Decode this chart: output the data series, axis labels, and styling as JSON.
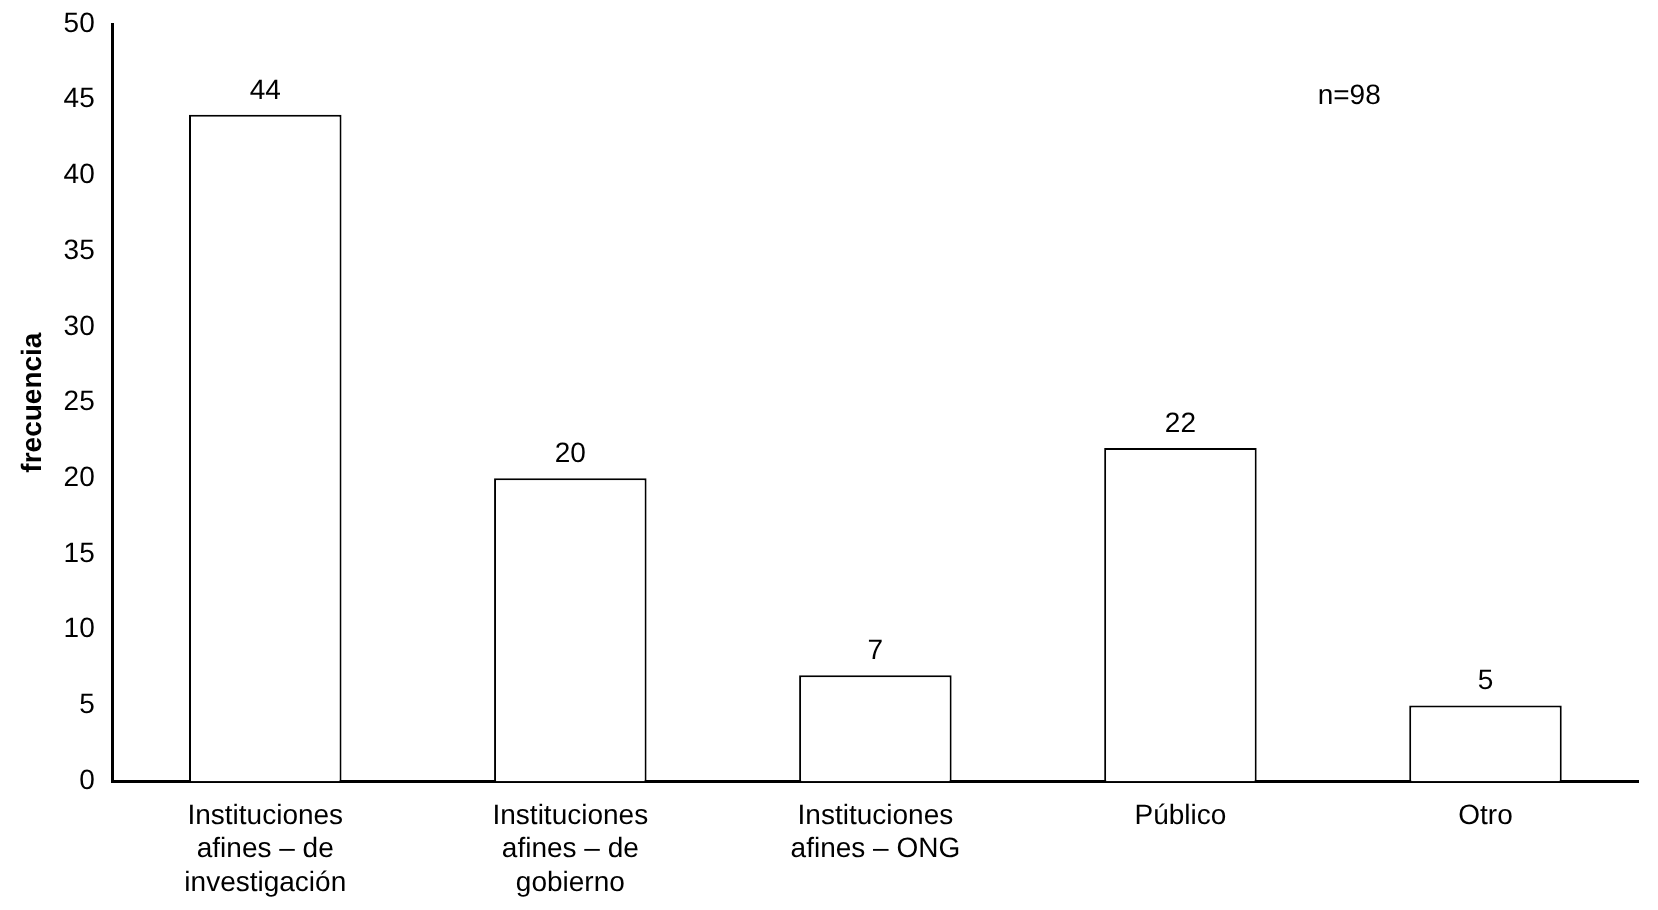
{
  "chart_data": {
    "type": "bar",
    "ylabel": "frecuencia",
    "categories": [
      "Instituciones afines – de investigación",
      "Instituciones afines – de gobierno",
      "Instituciones afines – ONG",
      "Público",
      "Otro"
    ],
    "values": [
      44,
      20,
      7,
      22,
      5
    ],
    "color": "#ffffff",
    "ylim": [
      0,
      50
    ],
    "yticks": [
      0,
      5,
      10,
      15,
      20,
      25,
      30,
      35,
      40,
      45,
      50
    ],
    "grid": false,
    "legend": false,
    "data_labels": true,
    "annotations": [
      "n=98"
    ]
  }
}
